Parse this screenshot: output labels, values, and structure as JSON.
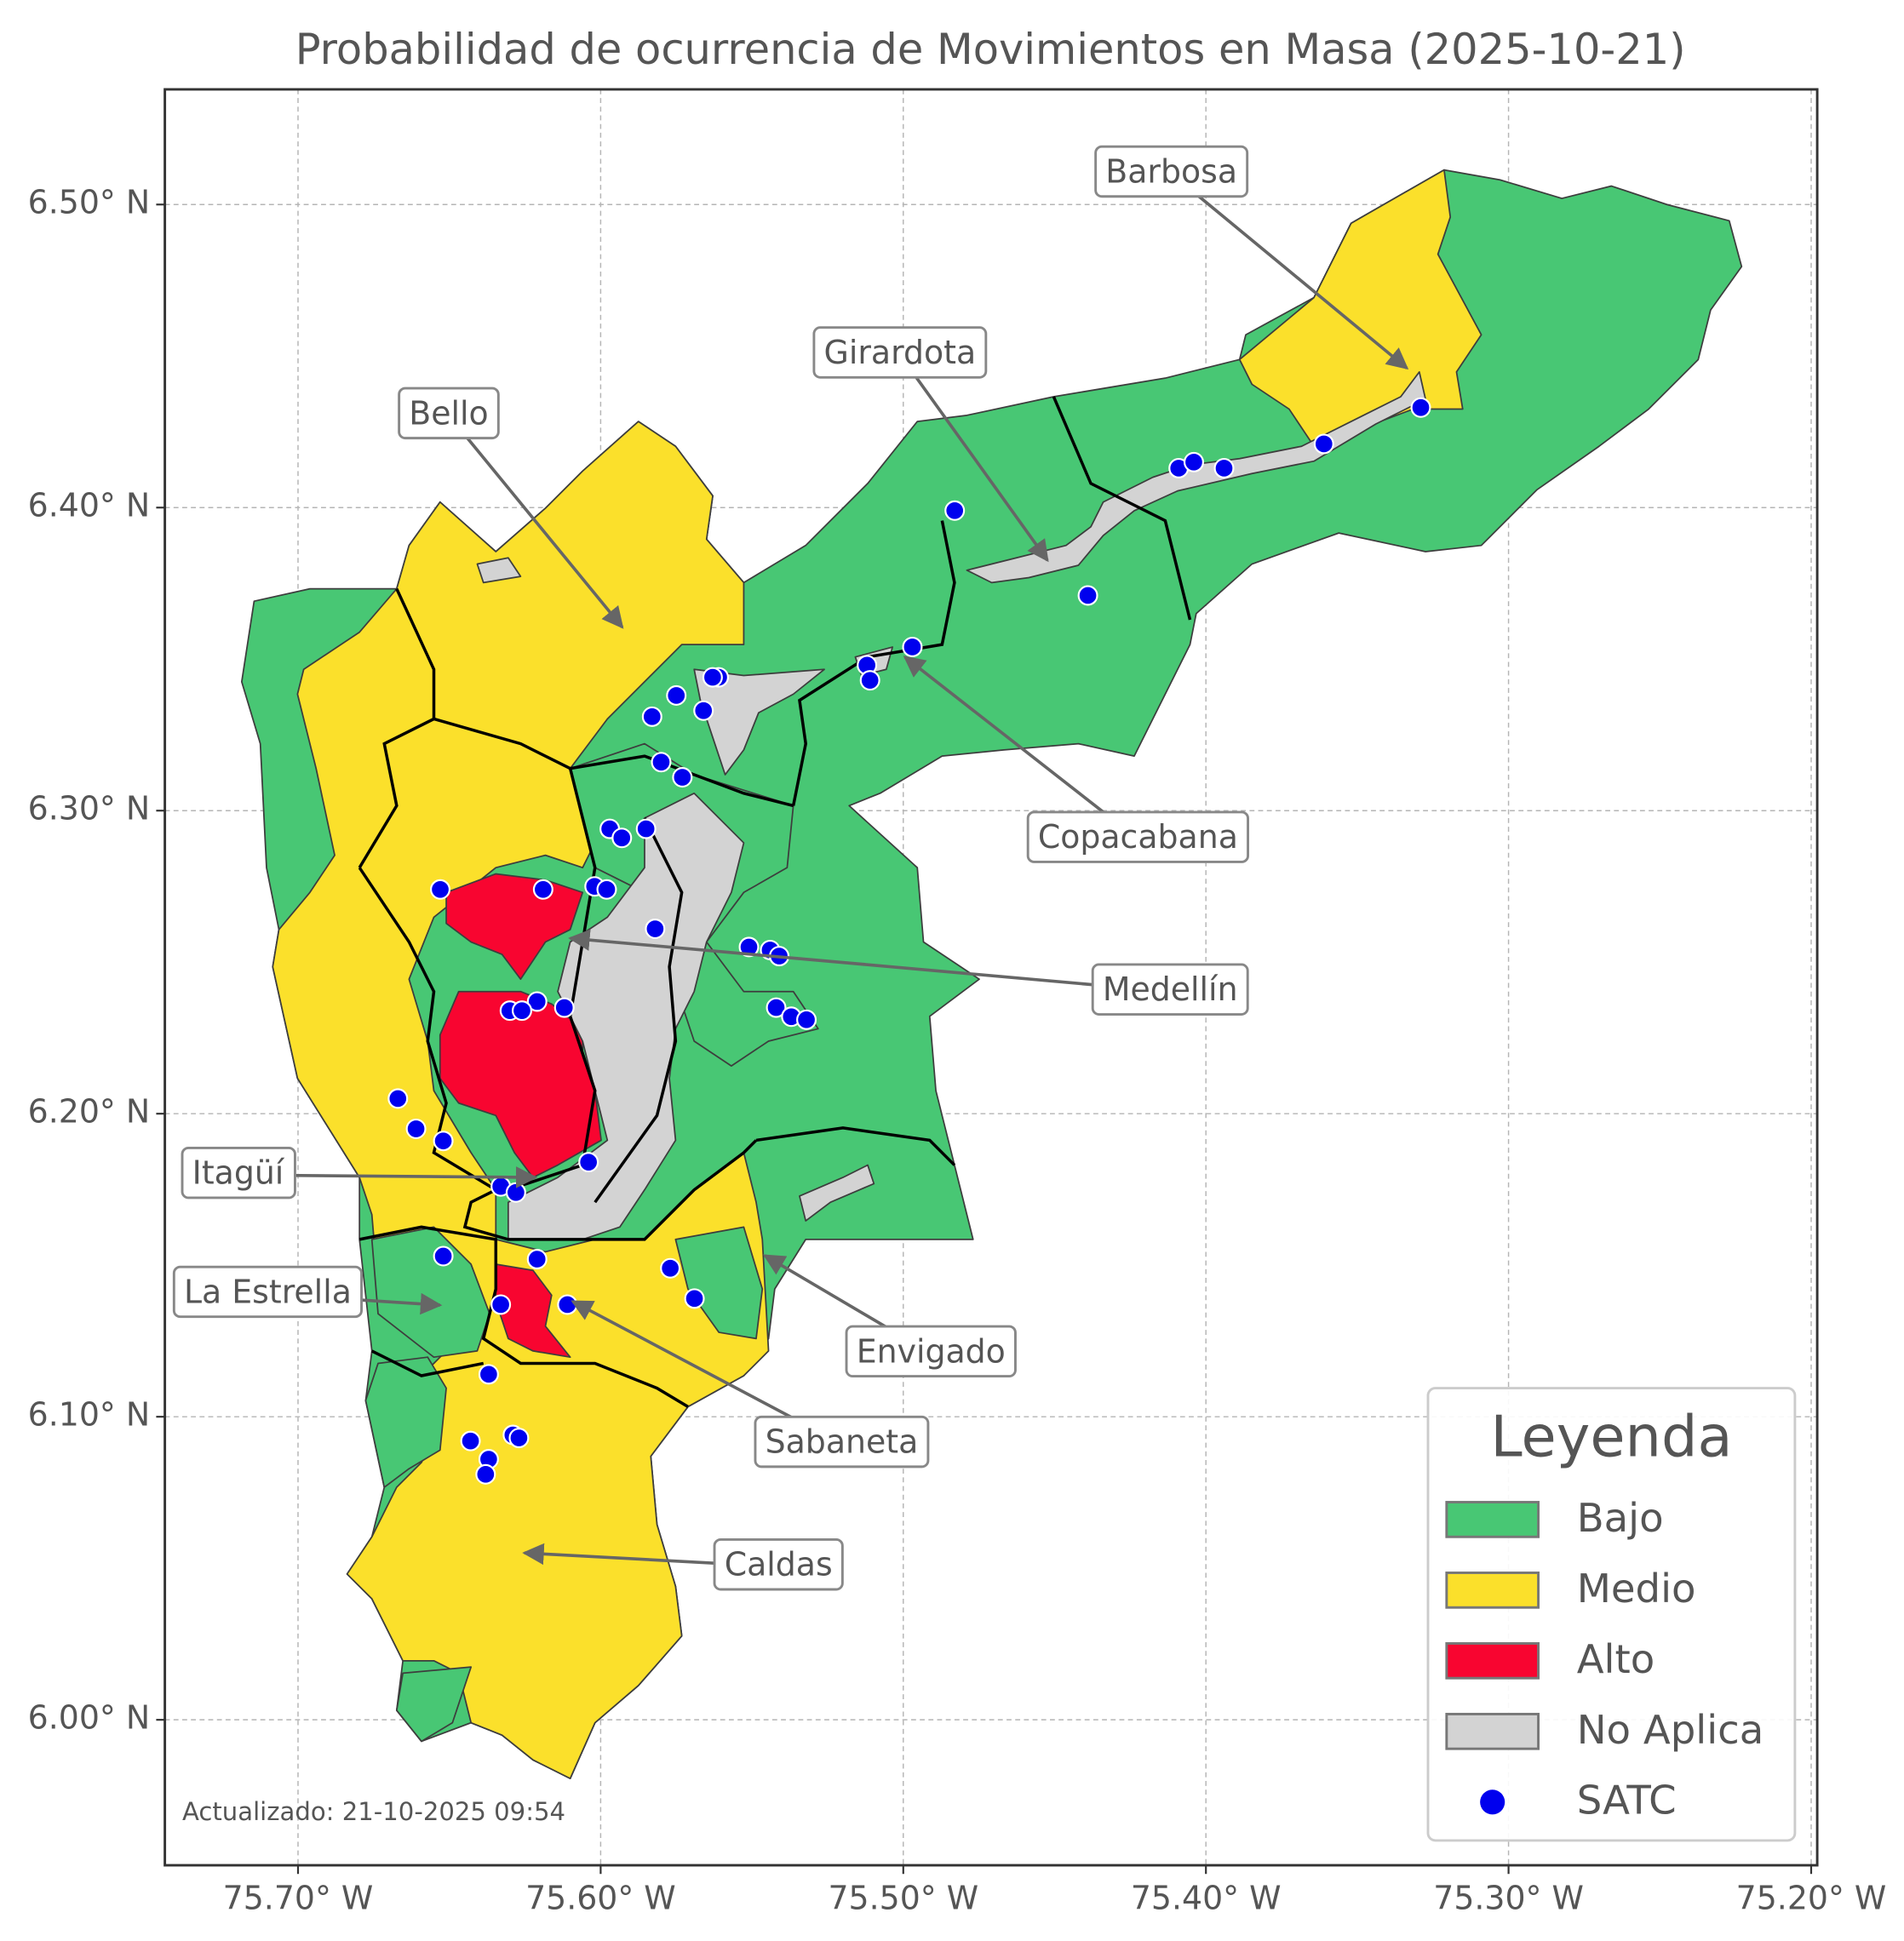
{
  "chart_data": {
    "type": "map",
    "title": "Probabilidad de ocurrencia de Movimientos en Masa (2025-10-21)",
    "xlim": [
      -75.744,
      -75.198
    ],
    "ylim": [
      5.952,
      6.538
    ],
    "xticks": [
      {
        "value": -75.7,
        "label": "75.70° W"
      },
      {
        "value": -75.6,
        "label": "75.60° W"
      },
      {
        "value": -75.5,
        "label": "75.50° W"
      },
      {
        "value": -75.4,
        "label": "75.40° W"
      },
      {
        "value": -75.3,
        "label": "75.30° W"
      },
      {
        "value": -75.2,
        "label": "75.20° W"
      }
    ],
    "yticks": [
      {
        "value": 6.0,
        "label": "6.00° N"
      },
      {
        "value": 6.1,
        "label": "6.10° N"
      },
      {
        "value": 6.2,
        "label": "6.20° N"
      },
      {
        "value": 6.3,
        "label": "6.30° N"
      },
      {
        "value": 6.4,
        "label": "6.40° N"
      },
      {
        "value": 6.5,
        "label": "6.50° N"
      }
    ],
    "grid": true,
    "legend_title": "Leyenda",
    "legend_position": "lower right",
    "classes": [
      {
        "name": "Bajo",
        "color": "#48c774"
      },
      {
        "name": "Medio",
        "color": "#fbe02b"
      },
      {
        "name": "Alto",
        "color": "#f80530"
      },
      {
        "name": "No Aplica",
        "color": "#d3d3d3"
      }
    ],
    "series": [
      {
        "name": "SATC",
        "color": "#0000ee",
        "x": [
          -75.329,
          -75.361,
          -75.409,
          -75.404,
          -75.394,
          -75.483,
          -75.439,
          -75.497,
          -75.512,
          -75.511,
          -75.561,
          -75.563,
          -75.575,
          -75.566,
          -75.583,
          -75.58,
          -75.573,
          -75.597,
          -75.593,
          -75.585,
          -75.602,
          -75.598,
          -75.619,
          -75.653,
          -75.582,
          -75.551,
          -75.544,
          -75.541,
          -75.542,
          -75.537,
          -75.532,
          -75.621,
          -75.612,
          -75.63,
          -75.626,
          -75.667,
          -75.661,
          -75.652,
          -75.604,
          -75.633,
          -75.628,
          -75.652,
          -75.621,
          -75.577,
          -75.569,
          -75.633,
          -75.611,
          -75.637,
          -75.643,
          -75.629,
          -75.627,
          -75.637,
          -75.638
        ],
        "y": [
          6.433,
          6.421,
          6.413,
          6.415,
          6.413,
          6.399,
          6.371,
          6.354,
          6.348,
          6.343,
          6.344,
          6.344,
          6.338,
          6.333,
          6.331,
          6.316,
          6.311,
          6.294,
          6.291,
          6.294,
          6.275,
          6.274,
          6.274,
          6.274,
          6.261,
          6.255,
          6.254,
          6.252,
          6.235,
          6.232,
          6.231,
          6.237,
          6.235,
          6.234,
          6.234,
          6.205,
          6.195,
          6.191,
          6.184,
          6.176,
          6.174,
          6.153,
          6.152,
          6.149,
          6.139,
          6.137,
          6.137,
          6.114,
          6.092,
          6.094,
          6.093,
          6.086,
          6.081
        ]
      }
    ],
    "annotations": [
      "Barbosa",
      "Girardota",
      "Bello",
      "Copacabana",
      "Medellín",
      "Itagüí",
      "La Estrella",
      "Envigado",
      "Sabaneta",
      "Caldas"
    ],
    "footnote": "Actualizado: 21-10-2025 09:54"
  }
}
